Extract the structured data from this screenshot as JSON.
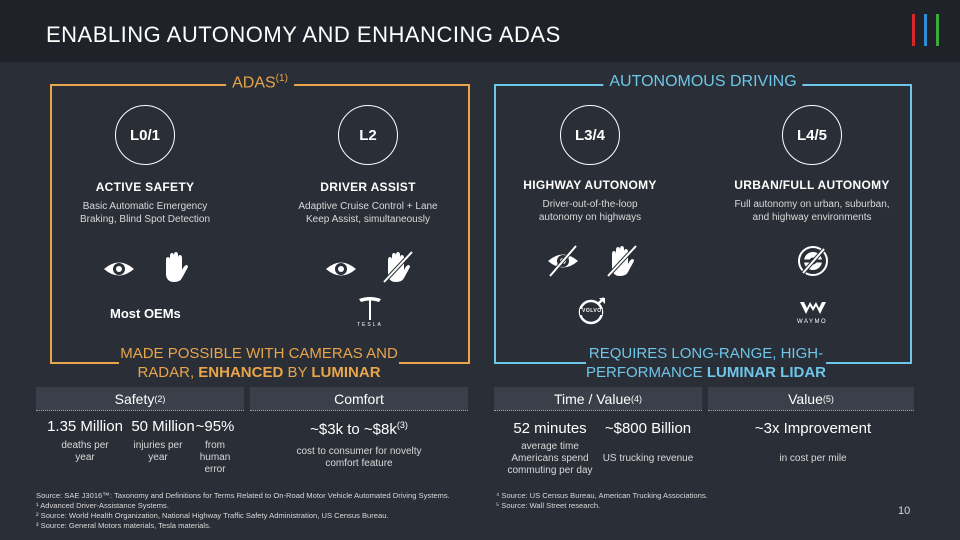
{
  "header": {
    "title": "ENABLING AUTONOMY AND ENHANCING ADAS"
  },
  "colors": {
    "bar1": "#d62828",
    "bar2": "#2f8dd6",
    "bar3": "#3aaa3a",
    "adas": "#e8a54a",
    "ad": "#6ec6e8"
  },
  "adas": {
    "label": "ADAS",
    "label_sup": "(1)",
    "levels": [
      {
        "level": "L0/1",
        "category": "ACTIVE SAFETY",
        "description": "Basic Automatic Emergency Braking, Blind Spot Detection"
      },
      {
        "level": "L2",
        "category": "DRIVER ASSIST",
        "description": "Adaptive Cruise Control + Lane Keep Assist, simultaneously"
      }
    ],
    "oems": "Most OEMs",
    "tesla_wordmark": "TESLA",
    "footer_line1": "MADE POSSIBLE WITH CAMERAS AND",
    "footer_line2_a": "RADAR, ",
    "footer_line2_b": "ENHANCED",
    "footer_line2_c": " BY ",
    "footer_line2_d": "LUMINAR"
  },
  "autonomous": {
    "label": "AUTONOMOUS DRIVING",
    "levels": [
      {
        "level": "L3/4",
        "category": "HIGHWAY AUTONOMY",
        "description": "Driver-out-of-the-loop autonomy on highways"
      },
      {
        "level": "L4/5",
        "category": "URBAN/FULL AUTONOMY",
        "description": "Full autonomy on urban, suburban, and highway environments"
      }
    ],
    "volvo_wordmark": "VOLVO",
    "waymo_wordmark": "WAYMO",
    "footer_line1": "REQUIRES LONG-RANGE, HIGH-",
    "footer_line2_a": "PERFORMANCE ",
    "footer_line2_b": "LUMINAR LIDAR"
  },
  "stats": {
    "safety": {
      "label": "Safety",
      "sup": "(2)",
      "items": [
        {
          "value": "1.35 Million",
          "caption": "deaths per year"
        },
        {
          "value": "50 Million",
          "caption": "injuries per year"
        },
        {
          "value": "~95%",
          "caption": "from human error"
        }
      ]
    },
    "comfort": {
      "label": "Comfort",
      "value": "~$3k to ~$8k",
      "value_sup": "(3)",
      "caption": "cost to consumer for novelty comfort feature"
    },
    "time": {
      "label": "Time / Value",
      "sup": "(4)",
      "items": [
        {
          "value": "52 minutes",
          "caption": "average time Americans spend commuting per day"
        },
        {
          "value": "~$800 Billion",
          "caption": "US trucking revenue"
        }
      ]
    },
    "value": {
      "label": "Value",
      "sup": "(5)",
      "value": "~3x Improvement",
      "caption": "in cost per mile"
    }
  },
  "sources": {
    "left": [
      "Source: SAE J3016™: Taxonomy and Definitions for Terms Related to On-Road Motor Vehicle Automated Driving Systems.",
      "¹ Advanced Driver-Assistance Systems.",
      "² Source: World Health Organization, National Highway Traffic Safety Administration, US Census Bureau.",
      "³ Source: General Motors materials, Tesla materials."
    ],
    "right": [
      "⁴ Source: US Census Bureau, American Trucking Associations.",
      "⁵ Source: Wall Street research."
    ]
  },
  "page_number": "10"
}
